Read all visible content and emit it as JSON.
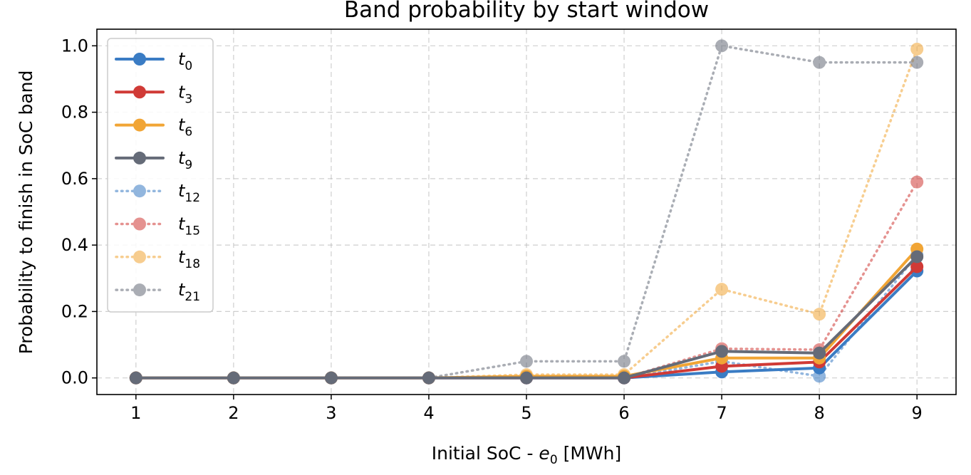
{
  "chart_data": {
    "type": "line",
    "title": "Band probability by start window",
    "xlabel_prefix": "Initial SoC - ",
    "xlabel_var": "e",
    "xlabel_sub": "0",
    "xlabel_suffix": " [MWh]",
    "ylabel": "Probability to finish in SoC band",
    "x": [
      1,
      2,
      3,
      4,
      5,
      6,
      7,
      8,
      9
    ],
    "xlim": [
      0.6,
      9.4
    ],
    "ylim": [
      -0.05,
      1.05
    ],
    "xticks": [
      "1",
      "2",
      "3",
      "4",
      "5",
      "6",
      "7",
      "8",
      "9"
    ],
    "yticks": [
      "0.0",
      "0.2",
      "0.4",
      "0.6",
      "0.8",
      "1.0"
    ],
    "ytick_values": [
      0.0,
      0.2,
      0.4,
      0.6,
      0.8,
      1.0
    ],
    "grid": true,
    "legend_position": "top-left",
    "series": [
      {
        "name": "t",
        "sub": "0",
        "color": "#3a7cc4",
        "style": "solid",
        "values": [
          0,
          0,
          0,
          0,
          0,
          0,
          0.018,
          0.03,
          0.322
        ]
      },
      {
        "name": "t",
        "sub": "3",
        "color": "#d03a36",
        "style": "solid",
        "values": [
          0,
          0,
          0,
          0,
          0,
          0,
          0.035,
          0.048,
          0.335
        ]
      },
      {
        "name": "t",
        "sub": "6",
        "color": "#f1a535",
        "style": "solid",
        "values": [
          0,
          0,
          0,
          0,
          0.005,
          0.005,
          0.06,
          0.06,
          0.388
        ]
      },
      {
        "name": "t",
        "sub": "9",
        "color": "#656b78",
        "style": "solid",
        "values": [
          0,
          0,
          0,
          0,
          0,
          0,
          0.08,
          0.075,
          0.365
        ]
      },
      {
        "name": "t",
        "sub": "12",
        "color": "#3a7cc4",
        "style": "dotted",
        "values": [
          0,
          0,
          0,
          0,
          0,
          0,
          0.05,
          0.005,
          0.37
        ]
      },
      {
        "name": "t",
        "sub": "15",
        "color": "#d03a36",
        "style": "dotted",
        "values": [
          0,
          0,
          0,
          0,
          0,
          0,
          0.088,
          0.085,
          0.59
        ]
      },
      {
        "name": "t",
        "sub": "18",
        "color": "#f1a535",
        "style": "dotted",
        "values": [
          0,
          0,
          0,
          0,
          0.01,
          0.01,
          0.267,
          0.192,
          0.99
        ]
      },
      {
        "name": "t",
        "sub": "21",
        "color": "#656b78",
        "style": "dotted",
        "values": [
          0,
          0,
          0,
          0,
          0.05,
          0.05,
          1.0,
          0.95,
          0.95
        ]
      }
    ]
  }
}
